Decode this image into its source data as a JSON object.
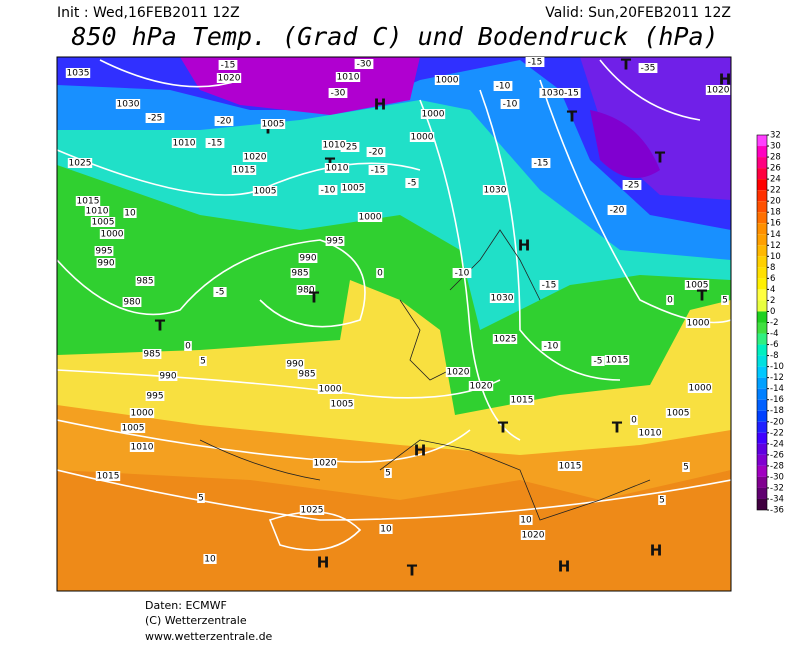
{
  "header": {
    "init": "Init : Wed,16FEB2011 12Z",
    "valid": "Valid: Sun,20FEB2011 12Z",
    "title": "850 hPa Temp. (Grad C) und Bodendruck (hPa)"
  },
  "map": {
    "labels": [
      "1035",
      "1020",
      "-15",
      "1010",
      "-30",
      "-30",
      "H",
      "1000",
      "1000",
      "-10",
      "-10",
      "-15",
      "-35",
      "T",
      "1020",
      "H",
      "1030",
      "-25",
      "-20",
      "T",
      "1005",
      "1010",
      "-15",
      "1020",
      "-25",
      "1010",
      "-20",
      "1000",
      "1030-15",
      "T",
      "T",
      "-15",
      "1025",
      "1015",
      "T",
      "1010",
      "1005",
      "-15",
      "-10",
      "-5",
      "1030",
      "-25",
      "-20",
      "1005",
      "1015",
      "1010",
      "10",
      "1005",
      "1000",
      "995",
      "1000",
      "995",
      "H",
      "990",
      "990",
      "985",
      "985",
      "0",
      "-10",
      "-15",
      "-5",
      "980",
      "T",
      "980",
      "1030",
      "T",
      "1025",
      "-10",
      "985",
      "0",
      "5",
      "990",
      "985",
      "-5",
      "1015",
      "1020",
      "990",
      "1000",
      "1020",
      "995",
      "1005",
      "1015",
      "1000",
      "1005",
      "T",
      "T",
      "1010",
      "1005",
      "1010",
      "H",
      "1020",
      "1015",
      "5",
      "5",
      "1015",
      "5",
      "1025",
      "10",
      "5",
      "1020",
      "10",
      "H",
      "H",
      "H",
      "T",
      "10",
      "1005",
      "T",
      "1000",
      "5",
      "1000",
      "0",
      "0"
    ]
  },
  "colorbar": {
    "ticks": [
      32,
      30,
      28,
      26,
      24,
      22,
      20,
      18,
      16,
      14,
      12,
      10,
      8,
      6,
      4,
      2,
      0,
      -2,
      -4,
      -6,
      -8,
      -10,
      -12,
      -14,
      -16,
      -18,
      -20,
      -22,
      -24,
      -26,
      -28,
      -30,
      -32,
      -34,
      -36
    ],
    "colors": [
      "#ff40ff",
      "#ff00c0",
      "#ff0080",
      "#ff0040",
      "#ff0000",
      "#ff3000",
      "#ff5000",
      "#ff7000",
      "#ff9000",
      "#ffa000",
      "#ffb800",
      "#ffd000",
      "#ffe000",
      "#fff000",
      "#ffff40",
      "#e8ff40",
      "#20d020",
      "#40e040",
      "#30f080",
      "#00f0c0",
      "#00e0e0",
      "#00c8ff",
      "#00a0ff",
      "#0080ff",
      "#0060ff",
      "#0040ff",
      "#2020ff",
      "#4000ff",
      "#6000e0",
      "#8000d0",
      "#a000c0",
      "#800090",
      "#600070",
      "#400040"
    ]
  },
  "footer": {
    "source": "Daten: ECMWF",
    "copyright": "(C) Wetterzentrale",
    "url": "www.wetterzentrale.de"
  }
}
